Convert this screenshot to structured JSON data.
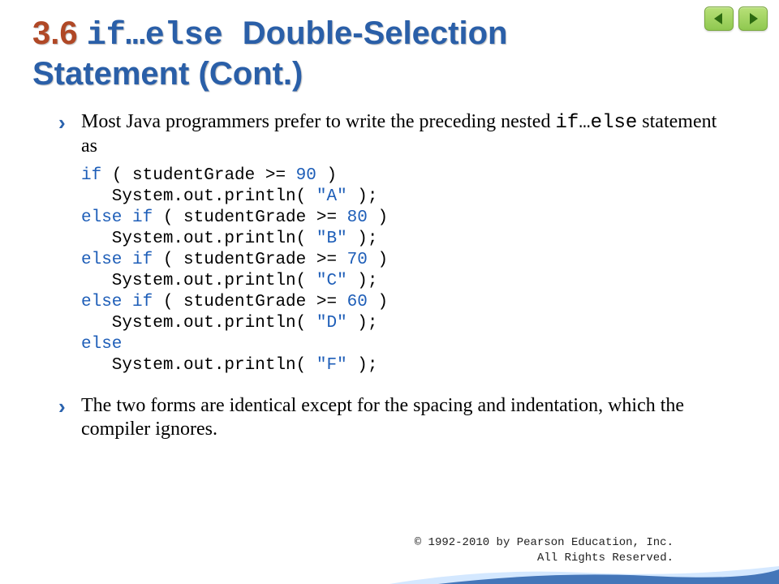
{
  "title": {
    "number": "3.6 ",
    "mono": "if…else ",
    "rest1": "Double-Selection",
    "rest2": "Statement (Cont.)"
  },
  "bullets": {
    "p1a": "Most Java programmers prefer to write the preceding nested ",
    "p1mono": "if…else",
    "p1b": " statement as",
    "p2": "The two forms are identical except for the spacing and indentation, which the compiler ignores."
  },
  "code": {
    "lines": [
      {
        "indent": 0,
        "t": [
          {
            "k": "kw",
            "v": "if"
          },
          {
            "k": "p",
            "v": " ( studentGrade >= "
          },
          {
            "k": "num",
            "v": "90"
          },
          {
            "k": "p",
            "v": " )"
          }
        ]
      },
      {
        "indent": 1,
        "t": [
          {
            "k": "p",
            "v": "System.out.println( "
          },
          {
            "k": "str",
            "v": "\"A\""
          },
          {
            "k": "p",
            "v": " );"
          }
        ]
      },
      {
        "indent": 0,
        "t": [
          {
            "k": "kw",
            "v": "else if"
          },
          {
            "k": "p",
            "v": " ( studentGrade >= "
          },
          {
            "k": "num",
            "v": "80"
          },
          {
            "k": "p",
            "v": " )"
          }
        ]
      },
      {
        "indent": 1,
        "t": [
          {
            "k": "p",
            "v": "System.out.println( "
          },
          {
            "k": "str",
            "v": "\"B\""
          },
          {
            "k": "p",
            "v": " );"
          }
        ]
      },
      {
        "indent": 0,
        "t": [
          {
            "k": "kw",
            "v": "else if"
          },
          {
            "k": "p",
            "v": " ( studentGrade >= "
          },
          {
            "k": "num",
            "v": "70"
          },
          {
            "k": "p",
            "v": " )"
          }
        ]
      },
      {
        "indent": 1,
        "t": [
          {
            "k": "p",
            "v": "System.out.println( "
          },
          {
            "k": "str",
            "v": "\"C\""
          },
          {
            "k": "p",
            "v": " );"
          }
        ]
      },
      {
        "indent": 0,
        "t": [
          {
            "k": "kw",
            "v": "else if"
          },
          {
            "k": "p",
            "v": " ( studentGrade >= "
          },
          {
            "k": "num",
            "v": "60"
          },
          {
            "k": "p",
            "v": " )"
          }
        ]
      },
      {
        "indent": 1,
        "t": [
          {
            "k": "p",
            "v": "System.out.println( "
          },
          {
            "k": "str",
            "v": "\"D\""
          },
          {
            "k": "p",
            "v": " );"
          }
        ]
      },
      {
        "indent": 0,
        "t": [
          {
            "k": "kw",
            "v": "else"
          }
        ]
      },
      {
        "indent": 1,
        "t": [
          {
            "k": "p",
            "v": "System.out.println( "
          },
          {
            "k": "str",
            "v": "\"F\""
          },
          {
            "k": "p",
            "v": " );"
          }
        ]
      }
    ]
  },
  "footer": {
    "l1": "© 1992-2010 by Pearson Education, Inc.",
    "l2": "All Rights Reserved."
  },
  "colors": {
    "title_blue": "#2a5fa8",
    "section_num": "#b04826",
    "keyword": "#1e5eb8",
    "nav_btn_bg1": "#b8e078",
    "nav_btn_bg2": "#8fc850"
  }
}
